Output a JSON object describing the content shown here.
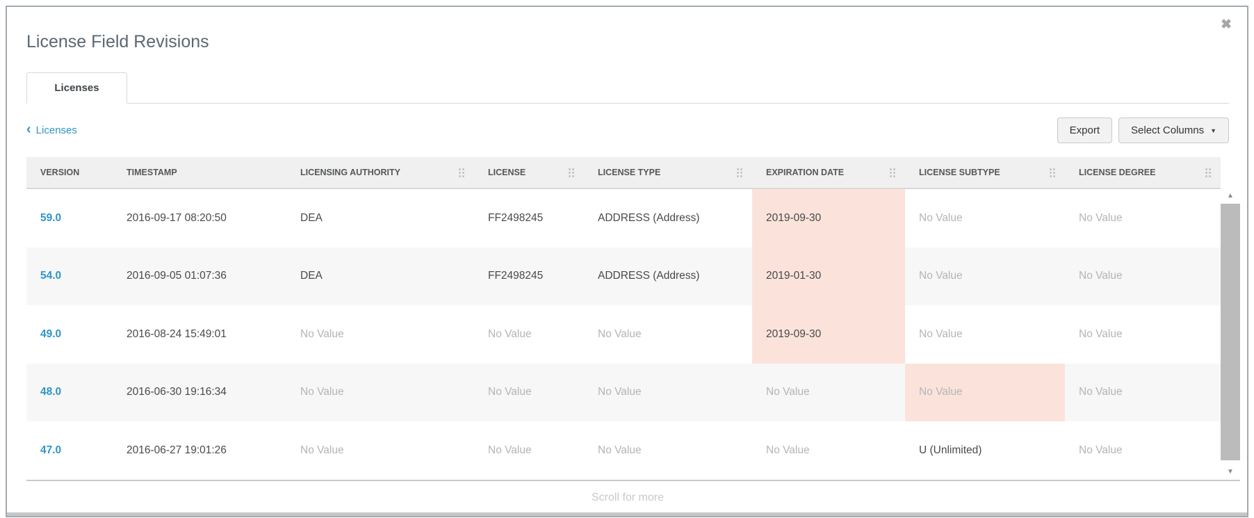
{
  "dialog": {
    "title": "License Field Revisions",
    "close_icon": "✖"
  },
  "tab": {
    "label": "Licenses"
  },
  "toolbar": {
    "back_chevron": "‹",
    "back_label": "Licenses",
    "export_label": "Export",
    "select_columns_label": "Select Columns",
    "select_columns_caret": "▼"
  },
  "table": {
    "columns": [
      {
        "label": "VERSION",
        "has_handle": false
      },
      {
        "label": "TIMESTAMP",
        "has_handle": false
      },
      {
        "label": "LICENSING AUTHORITY",
        "has_handle": true
      },
      {
        "label": "LICENSE",
        "has_handle": true
      },
      {
        "label": "LICENSE TYPE",
        "has_handle": true
      },
      {
        "label": "EXPIRATION DATE",
        "has_handle": true
      },
      {
        "label": "LICENSE SUBTYPE",
        "has_handle": true
      },
      {
        "label": "LICENSE DEGREE",
        "has_handle": true
      }
    ],
    "rows": [
      {
        "cells": [
          {
            "text": "59.0",
            "style": "link"
          },
          {
            "text": "2016-09-17 08:20:50",
            "style": "normal"
          },
          {
            "text": "DEA",
            "style": "normal"
          },
          {
            "text": "FF2498245",
            "style": "normal"
          },
          {
            "text": "ADDRESS (Address)",
            "style": "normal"
          },
          {
            "text": "2019-09-30",
            "style": "normal",
            "highlight": true
          },
          {
            "text": "No Value",
            "style": "muted"
          },
          {
            "text": "No Value",
            "style": "muted"
          }
        ]
      },
      {
        "cells": [
          {
            "text": "54.0",
            "style": "link"
          },
          {
            "text": "2016-09-05 01:07:36",
            "style": "normal"
          },
          {
            "text": "DEA",
            "style": "normal"
          },
          {
            "text": "FF2498245",
            "style": "normal"
          },
          {
            "text": "ADDRESS (Address)",
            "style": "normal"
          },
          {
            "text": "2019-01-30",
            "style": "normal",
            "highlight": true
          },
          {
            "text": "No Value",
            "style": "muted"
          },
          {
            "text": "No Value",
            "style": "muted"
          }
        ]
      },
      {
        "cells": [
          {
            "text": "49.0",
            "style": "link"
          },
          {
            "text": "2016-08-24 15:49:01",
            "style": "normal"
          },
          {
            "text": "No Value",
            "style": "muted"
          },
          {
            "text": "No Value",
            "style": "muted"
          },
          {
            "text": "No Value",
            "style": "muted"
          },
          {
            "text": "2019-09-30",
            "style": "normal",
            "highlight": true
          },
          {
            "text": "No Value",
            "style": "muted"
          },
          {
            "text": "No Value",
            "style": "muted"
          }
        ]
      },
      {
        "cells": [
          {
            "text": "48.0",
            "style": "link"
          },
          {
            "text": "2016-06-30 19:16:34",
            "style": "normal"
          },
          {
            "text": "No Value",
            "style": "muted"
          },
          {
            "text": "No Value",
            "style": "muted"
          },
          {
            "text": "No Value",
            "style": "muted"
          },
          {
            "text": "No Value",
            "style": "muted"
          },
          {
            "text": "No Value",
            "style": "muted",
            "highlight": true
          },
          {
            "text": "No Value",
            "style": "muted"
          }
        ]
      },
      {
        "cells": [
          {
            "text": "47.0",
            "style": "link"
          },
          {
            "text": "2016-06-27 19:01:26",
            "style": "normal"
          },
          {
            "text": "No Value",
            "style": "muted"
          },
          {
            "text": "No Value",
            "style": "muted"
          },
          {
            "text": "No Value",
            "style": "muted"
          },
          {
            "text": "No Value",
            "style": "muted"
          },
          {
            "text": "U (Unlimited)",
            "style": "normal"
          },
          {
            "text": "No Value",
            "style": "muted"
          }
        ]
      }
    ]
  },
  "scrollbar": {
    "up_arrow": "▲",
    "down_arrow": "▼"
  },
  "footer": {
    "scroll_hint": "Scroll for more"
  },
  "colors": {
    "accent_blue": "#2e95c8",
    "highlight_pink": "#fbe3db",
    "header_bg": "#f0f0f0",
    "stripe_bg": "#f7f7f7",
    "muted_text": "#b4b4b4",
    "title_text": "#5c6771"
  }
}
